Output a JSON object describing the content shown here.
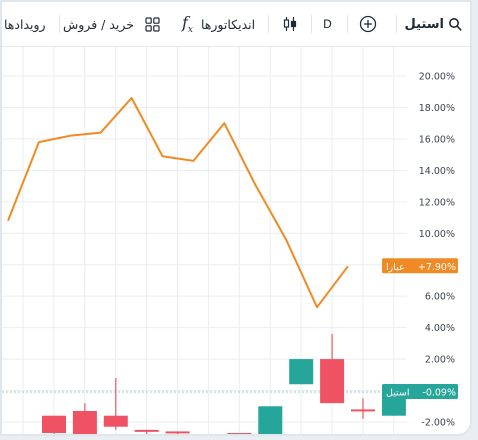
{
  "toolbar": {
    "symbol": "استیل",
    "interval": "D",
    "indicators_label": "اندیکاتورها",
    "trade_label": "خرید / فروش",
    "events_label": "رویدادها"
  },
  "colors": {
    "line": "#f08a24",
    "up": "#26a69a",
    "down": "#ef5363",
    "grid": "#e9edf2",
    "baseline": "#8fcfc6"
  },
  "chart_data": {
    "type": "line",
    "y_axis": {
      "ticks": [
        "20.00%",
        "18.00%",
        "16.00%",
        "14.00%",
        "12.00%",
        "10.00%",
        "8.00%",
        "6.00%",
        "4.00%",
        "2.00%",
        "0.00%",
        "-2.00%"
      ],
      "range": [
        -2.6,
        21.0
      ]
    },
    "series": [
      {
        "name": "عیارا",
        "values": [
          10.8,
          15.8,
          16.2,
          16.4,
          18.6,
          14.9,
          14.6,
          17.0,
          13.1,
          9.6,
          5.3,
          7.9
        ],
        "last_label": "+7.90%",
        "color": "#f08a24"
      }
    ],
    "candles": {
      "name": "استیل",
      "last_label": "-0.09%",
      "items": [
        {
          "open": -1.6,
          "close": -2.7,
          "high": -1.6,
          "low": -2.9
        },
        {
          "open": -1.3,
          "close": -3.0,
          "high": -0.8,
          "low": -3.4
        },
        {
          "open": -1.6,
          "close": -2.3,
          "high": 0.8,
          "low": -2.5
        },
        {
          "open": -2.5,
          "close": -2.6,
          "high": -2.5,
          "low": -2.8
        },
        {
          "open": -2.6,
          "close": -2.7,
          "high": -2.6,
          "low": -2.8
        },
        {
          "open": -2.8,
          "close": -2.9,
          "high": -2.8,
          "low": -3.0
        },
        {
          "open": -2.7,
          "close": -2.9,
          "high": -2.7,
          "low": -3.0
        },
        {
          "open": -3.0,
          "close": -1.0,
          "high": -1.0,
          "low": -3.1
        },
        {
          "open": 0.4,
          "close": 2.0,
          "high": 2.0,
          "low": 0.4
        },
        {
          "open": 2.0,
          "close": -0.8,
          "high": 3.6,
          "low": -0.8
        },
        {
          "open": -1.2,
          "close": -1.3,
          "high": -0.5,
          "low": -1.8
        },
        {
          "open": -1.6,
          "close": -0.1,
          "high": 0.1,
          "low": -1.6
        }
      ]
    },
    "baseline_value": -0.09,
    "grid": true
  }
}
